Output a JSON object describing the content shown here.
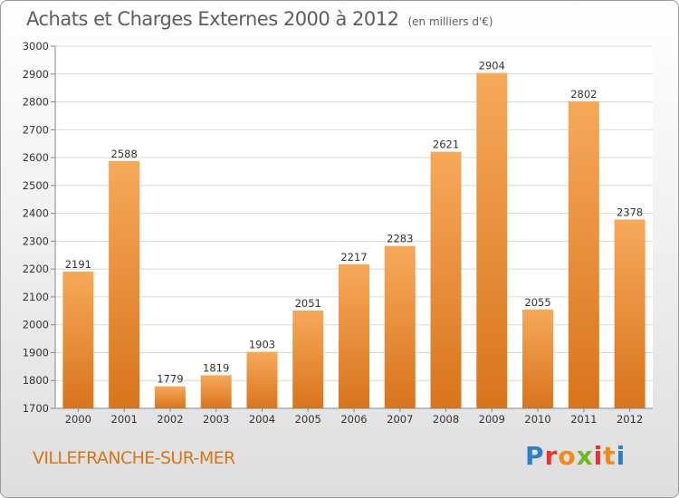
{
  "title": "Achats et Charges Externes 2000 à 2012",
  "subtitle": "(en milliers d'€)",
  "footer": {
    "city": "VILLEFRANCHE-SUR-MER",
    "logo": {
      "text": "Proxiti",
      "letters": [
        "P",
        "r",
        "o",
        "x",
        "i",
        "t",
        "i"
      ],
      "colors": [
        "#2e7fc8",
        "#e3342f",
        "#f18a1c",
        "#72b62b",
        "#e3342f",
        "#f18a1c",
        "#2e7fc8"
      ]
    }
  },
  "colors": {
    "bar_light": "#f6a95a",
    "bar_dark": "#d9741c",
    "grid": "#d8d8d8",
    "text": "#333333",
    "city": "#d4761c"
  },
  "chart_data": {
    "type": "bar",
    "categories": [
      "2000",
      "2001",
      "2002",
      "2003",
      "2004",
      "2005",
      "2006",
      "2007",
      "2008",
      "2009",
      "2010",
      "2011",
      "2012"
    ],
    "values": [
      2191,
      2588,
      1779,
      1819,
      1903,
      2051,
      2217,
      2283,
      2621,
      2904,
      2055,
      2802,
      2378
    ],
    "title": "Achats et Charges Externes 2000 à 2012",
    "subtitle": "(en milliers d'€)",
    "xlabel": "",
    "ylabel": "",
    "ylim": [
      1700,
      3000
    ],
    "yticks": [
      1700,
      1800,
      1900,
      2000,
      2100,
      2200,
      2300,
      2400,
      2500,
      2600,
      2700,
      2800,
      2900,
      3000
    ],
    "grid": true,
    "data_labels": true
  }
}
